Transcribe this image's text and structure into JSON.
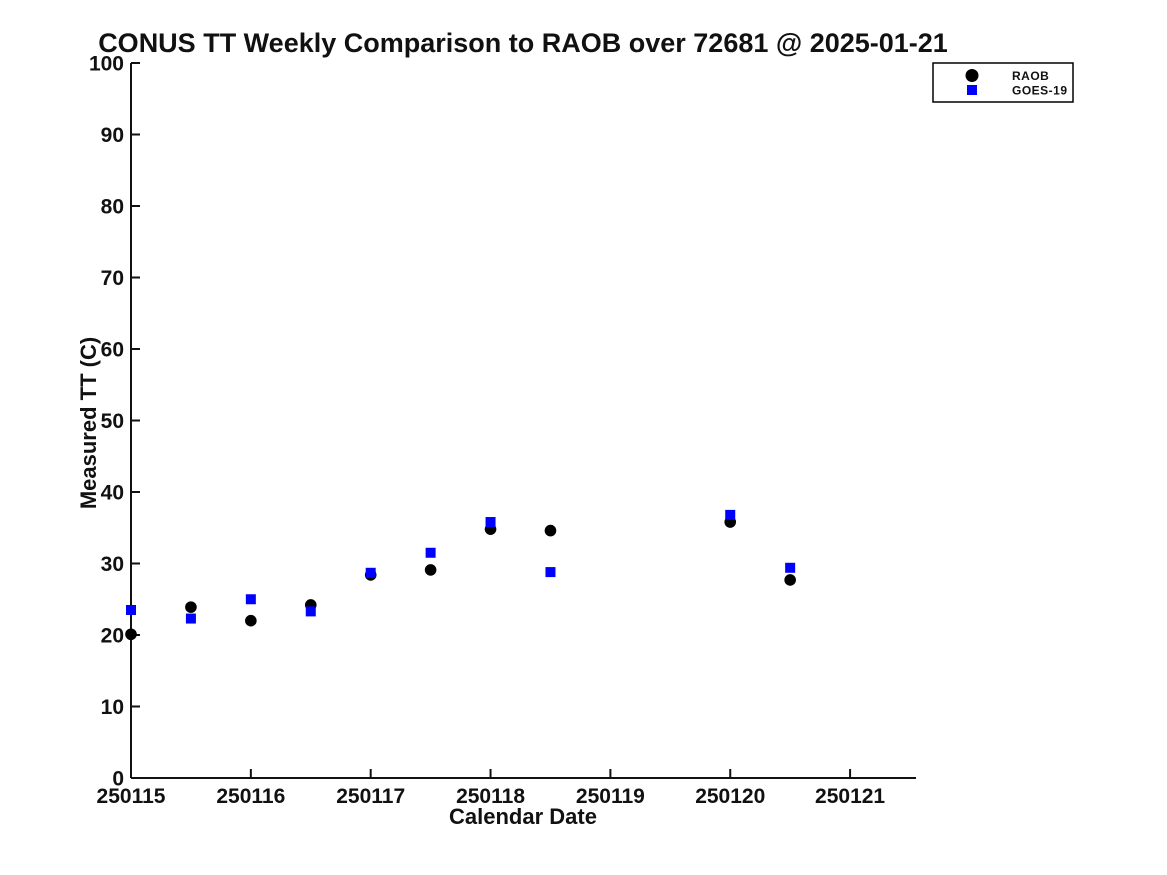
{
  "title": "CONUS TT Weekly Comparison to RAOB over 72681 @ 2025-01-21",
  "chart_data": {
    "type": "scatter",
    "title": "CONUS TT Weekly Comparison to RAOB over 72681 @ 2025-01-21",
    "xlabel": "Calendar Date",
    "ylabel": "Measured TT (C)",
    "xlim": [
      250115,
      250121.55
    ],
    "ylim": [
      0,
      100
    ],
    "xticks": [
      250115,
      250116,
      250117,
      250118,
      250119,
      250120,
      250121
    ],
    "yticks": [
      0,
      10,
      20,
      30,
      40,
      50,
      60,
      70,
      80,
      90,
      100
    ],
    "grid": false,
    "legend_position": "top-right",
    "axis_color": "#111111",
    "background_color": "#ffffff",
    "series": [
      {
        "name": "RAOB",
        "marker": "circle",
        "color": "#000000",
        "points": [
          [
            250115.0,
            20.1
          ],
          [
            250115.5,
            23.9
          ],
          [
            250116.0,
            22.0
          ],
          [
            250116.5,
            24.2
          ],
          [
            250117.0,
            28.4
          ],
          [
            250117.5,
            29.1
          ],
          [
            250118.0,
            34.8
          ],
          [
            250118.5,
            34.6
          ],
          [
            250120.0,
            35.8
          ],
          [
            250120.5,
            27.7
          ]
        ]
      },
      {
        "name": "GOES-19",
        "marker": "square",
        "color": "#0000ff",
        "points": [
          [
            250115.0,
            23.5
          ],
          [
            250115.5,
            22.3
          ],
          [
            250116.0,
            25.0
          ],
          [
            250116.5,
            23.3
          ],
          [
            250117.0,
            28.7
          ],
          [
            250117.5,
            31.5
          ],
          [
            250118.0,
            35.8
          ],
          [
            250118.5,
            28.8
          ],
          [
            250120.0,
            36.8
          ],
          [
            250120.5,
            29.4
          ]
        ]
      }
    ]
  }
}
